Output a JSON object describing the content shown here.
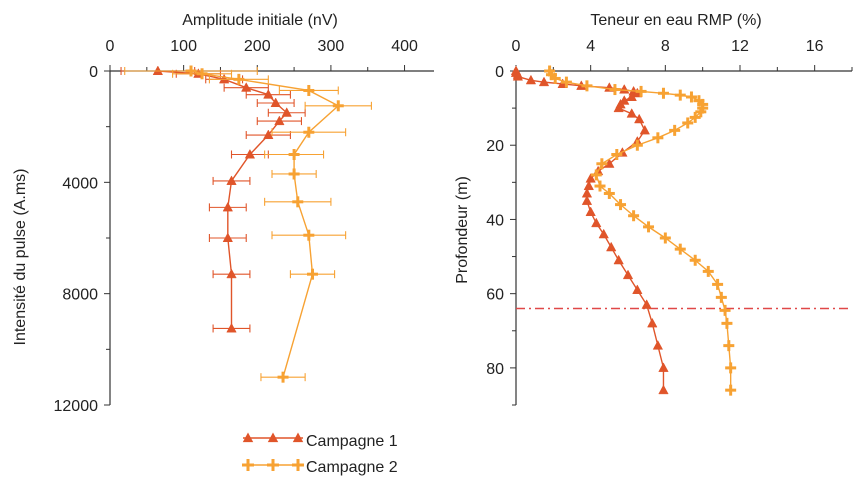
{
  "colors": {
    "campagne1": "#E0552A",
    "campagne2": "#F7A233",
    "reference_line": "#E04848",
    "axis": "#333333"
  },
  "legend": {
    "items": [
      {
        "label": "Campagne 1",
        "color": "#E0552A",
        "marker": "triangle"
      },
      {
        "label": "Campagne 2",
        "color": "#F7A233",
        "marker": "plus"
      }
    ],
    "placement": "bottom-left"
  },
  "chart_data": [
    {
      "type": "scatter",
      "xlabel": "Amplitude initiale (nV)",
      "ylabel": "Intensité du pulse (A.ms)",
      "xlim": [
        0,
        440
      ],
      "ylim": [
        0,
        12000
      ],
      "y_inverted": true,
      "x_axis_position": "top",
      "xticks": [
        0,
        100,
        200,
        300,
        400
      ],
      "yticks": [
        0,
        4000,
        8000,
        12000
      ],
      "grid": false,
      "series": [
        {
          "name": "Campagne 1",
          "marker": "triangle",
          "y": [
            0,
            100,
            300,
            600,
            850,
            1150,
            1500,
            1800,
            2300,
            3000,
            3950,
            4900,
            6000,
            7300,
            9250
          ],
          "x": [
            65,
            120,
            155,
            185,
            215,
            225,
            240,
            230,
            215,
            190,
            165,
            160,
            160,
            165,
            165
          ],
          "xerr": [
            50,
            30,
            25,
            30,
            30,
            25,
            25,
            30,
            30,
            25,
            25,
            25,
            25,
            25,
            25
          ]
        },
        {
          "name": "Campagne 2",
          "marker": "plus",
          "y": [
            0,
            100,
            300,
            700,
            1250,
            2200,
            3000,
            3700,
            4700,
            5900,
            7300,
            11000
          ],
          "x": [
            110,
            125,
            175,
            270,
            310,
            270,
            250,
            250,
            255,
            270,
            275,
            235
          ],
          "xerr": [
            90,
            40,
            40,
            40,
            45,
            50,
            40,
            30,
            45,
            50,
            30,
            30
          ]
        }
      ]
    },
    {
      "type": "line",
      "xlabel": "Teneur en eau RMP (%)",
      "ylabel": "Profondeur (m)",
      "xlim": [
        0,
        18
      ],
      "ylim": [
        0,
        90
      ],
      "y_inverted": true,
      "x_axis_position": "top",
      "xticks": [
        0,
        4,
        8,
        12,
        16
      ],
      "yticks": [
        0,
        20,
        40,
        60,
        80
      ],
      "grid": false,
      "reference_line_depth": 64,
      "series": [
        {
          "name": "Campagne 1",
          "marker": "triangle",
          "x": [
            0,
            0,
            0.1,
            0.1,
            0.8,
            1.5,
            2.5,
            3.5,
            5,
            5.8,
            6.3,
            6.5,
            6.2,
            5.8,
            5.6,
            5.5,
            6.2,
            6.6,
            6.9,
            6.5,
            5.7,
            5,
            4.4,
            4,
            3.9,
            3.8,
            3.8,
            4,
            4.3,
            4.7,
            5.1,
            5.5,
            6,
            6.5,
            7,
            7.3,
            7.6,
            7.9,
            7.9
          ],
          "y": [
            0,
            0.5,
            1,
            1.5,
            2.5,
            3,
            3.5,
            4,
            4.5,
            5,
            5.5,
            6,
            7,
            8,
            9,
            10,
            11.5,
            13,
            16,
            19,
            22,
            25,
            27,
            29,
            31,
            33,
            35,
            38,
            41,
            44,
            47.5,
            51,
            55,
            59,
            63,
            68,
            74,
            80,
            86
          ]
        },
        {
          "name": "Campagne 2",
          "marker": "plus",
          "x": [
            1.8,
            1.9,
            2.1,
            2.7,
            3.8,
            5.3,
            6.7,
            7.9,
            8.8,
            9.4,
            9.8,
            10,
            10,
            9.9,
            9.6,
            9.2,
            8.5,
            7.6,
            6.5,
            5.4,
            4.6,
            4.3,
            4.5,
            5,
            5.6,
            6.3,
            7.1,
            8,
            8.8,
            9.6,
            10.3,
            10.8,
            11,
            11.2,
            11.3,
            11.4,
            11.5,
            11.5
          ],
          "y": [
            0,
            1,
            2,
            3,
            4,
            5,
            5.5,
            6,
            6.5,
            7,
            8,
            9,
            10,
            11,
            12.5,
            14,
            16,
            18,
            20,
            22.5,
            25,
            28,
            31,
            33,
            36,
            39,
            42,
            45,
            48,
            51,
            54,
            57.5,
            61,
            64.5,
            68,
            74,
            80,
            86
          ]
        }
      ]
    }
  ]
}
